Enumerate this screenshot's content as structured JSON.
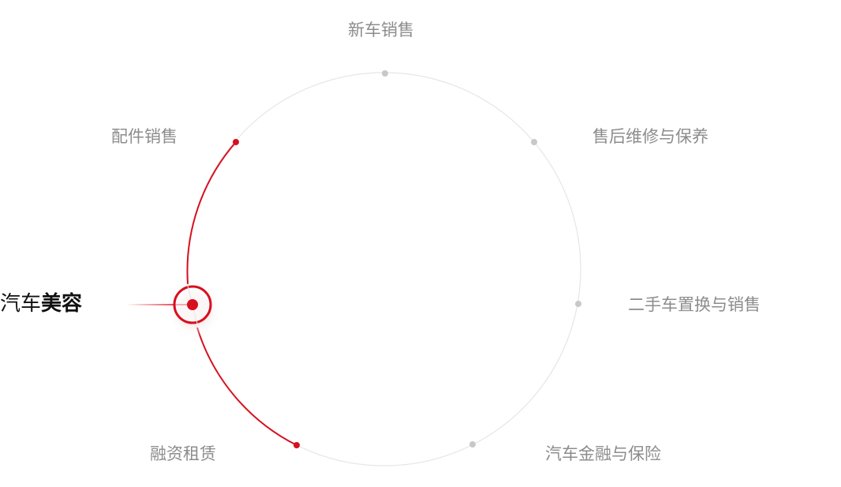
{
  "accent_color": "#d7101e",
  "items": [
    {
      "label": "新车销售",
      "active": false
    },
    {
      "label": "售后维修与保养",
      "active": false
    },
    {
      "label": "二手车置换与销售",
      "active": false
    },
    {
      "label": "汽车金融与保险",
      "active": false
    },
    {
      "label": "融资租赁",
      "active": false
    },
    {
      "label": "汽车美容",
      "active": true
    },
    {
      "label": "配件销售",
      "active": false
    }
  ],
  "active_label": {
    "normal": "汽车",
    "bold": "美容"
  }
}
